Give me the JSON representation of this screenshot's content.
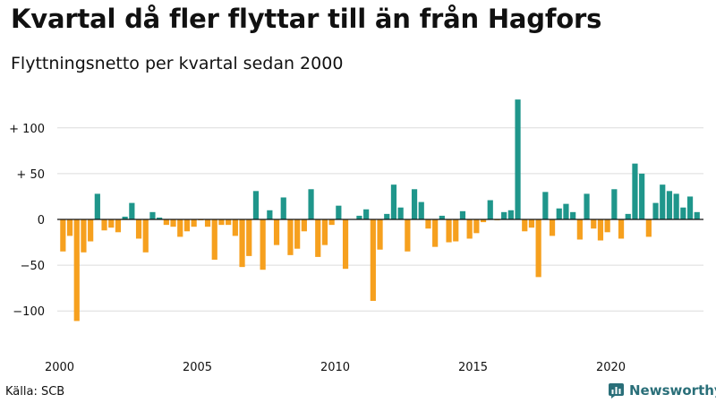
{
  "title": "Kvartal då fler flyttar till än från Hagfors",
  "subtitle": "Flyttningsnetto per kvartal sedan 2000",
  "source": "Källa: SCB",
  "brand": "Newsworthy",
  "colors": {
    "positive": "#1f968b",
    "negative": "#f6a01e",
    "grid": "#dcdcdc",
    "zero": "#111111",
    "brand": "#2a6f79"
  },
  "chart_data": {
    "type": "bar",
    "ylim": [
      -125,
      135
    ],
    "yticks": [
      {
        "value": 100,
        "label": "+ 100"
      },
      {
        "value": 50,
        "label": "+  50"
      },
      {
        "value": 0,
        "label": "0"
      },
      {
        "value": -50,
        "label": "−50"
      },
      {
        "value": -100,
        "label": "−100"
      }
    ],
    "xticks": [
      {
        "value": 2000,
        "label": "2000"
      },
      {
        "value": 2005,
        "label": "2005"
      },
      {
        "value": 2010,
        "label": "2010"
      },
      {
        "value": 2015,
        "label": "2015"
      },
      {
        "value": 2020,
        "label": "2020"
      }
    ],
    "start_year": 2000,
    "values": [
      -35,
      -18,
      -111,
      -36,
      -24,
      28,
      -12,
      -9,
      -14,
      3,
      18,
      -21,
      -36,
      8,
      2,
      -6,
      -8,
      -19,
      -13,
      -8,
      -1,
      -8,
      -44,
      -6,
      -6,
      -18,
      -52,
      -40,
      31,
      -55,
      10,
      -28,
      24,
      -39,
      -32,
      -13,
      33,
      -41,
      -28,
      -6,
      15,
      -54,
      0,
      4,
      11,
      -89,
      -33,
      6,
      38,
      13,
      -35,
      33,
      19,
      -10,
      -30,
      4,
      -25,
      -24,
      9,
      -21,
      -15,
      -3,
      21,
      -1,
      8,
      10,
      131,
      -13,
      -9,
      -63,
      30,
      -18,
      12,
      17,
      8,
      -22,
      28,
      -10,
      -23,
      -14,
      33,
      -21,
      6,
      61,
      50,
      -19,
      18,
      38,
      31,
      28,
      13,
      25,
      8
    ]
  }
}
